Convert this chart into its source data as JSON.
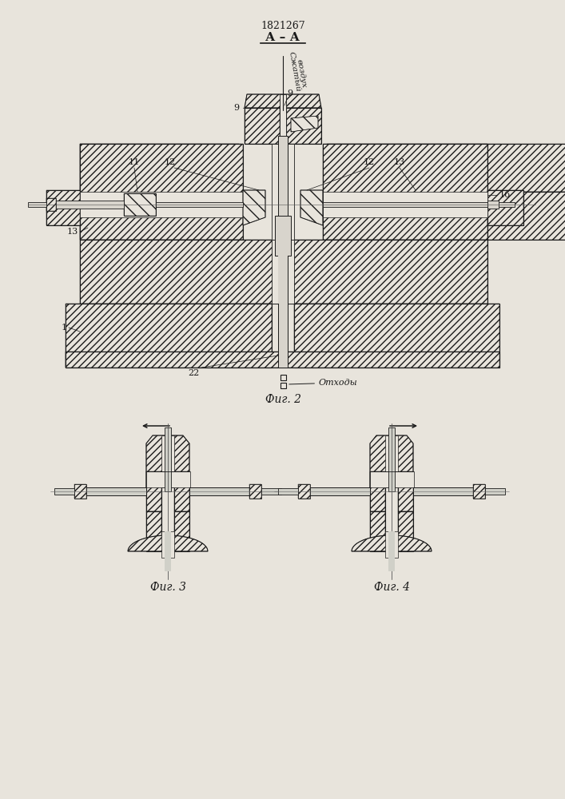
{
  "patent_number": "1821267",
  "section_label": "А – А",
  "fig2_label": "Фиг. 2",
  "fig3_label": "Фиг. 3",
  "fig4_label": "Фиг. 4",
  "label_szhaty": "Сжатый",
  "label_vozdukh": "воздух",
  "label_otkhody": "Отходы",
  "bg_color": "#e8e4dc",
  "line_color": "#1a1a1a",
  "fig_width": 7.07,
  "fig_height": 10.0
}
